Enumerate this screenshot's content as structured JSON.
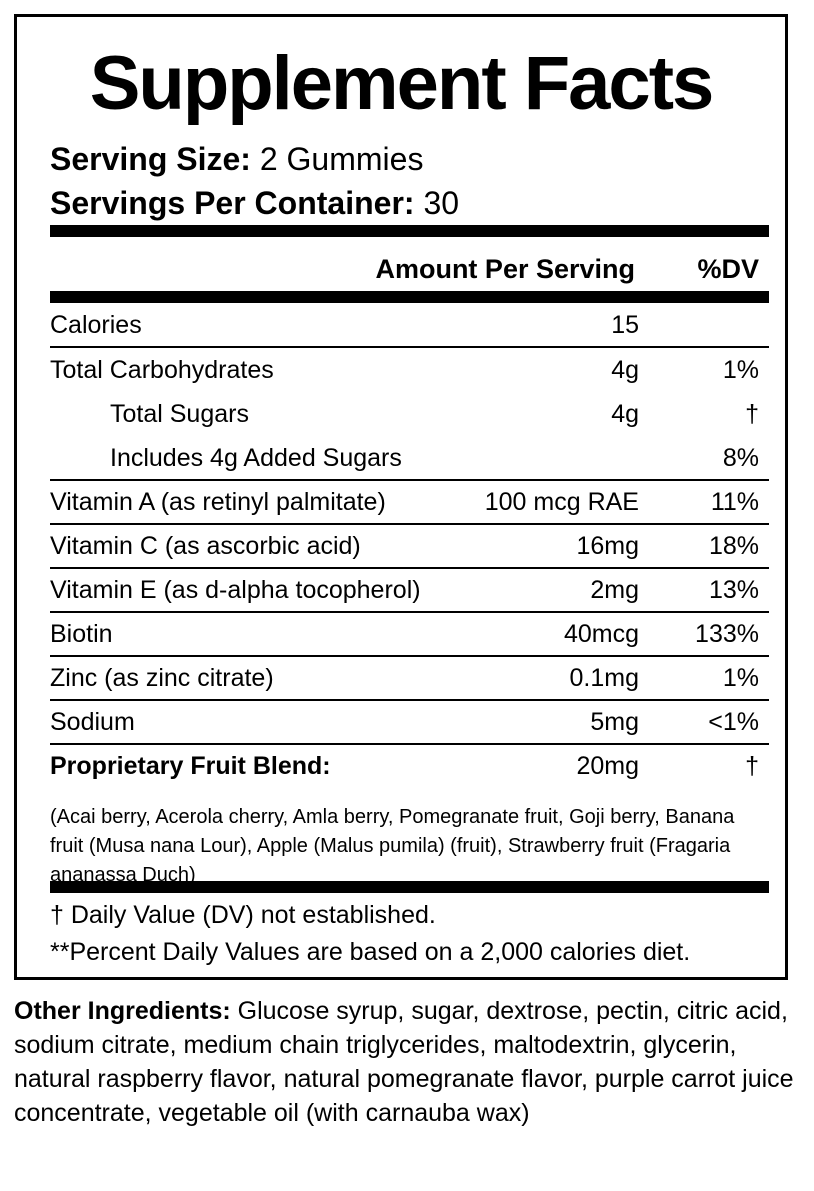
{
  "title": "Supplement Facts",
  "serving_size": {
    "label": "Serving Size:",
    "value": "2 Gummies"
  },
  "servings_per_container": {
    "label": "Servings Per Container:",
    "value": "30"
  },
  "header": {
    "amount": "Amount Per Serving",
    "dv": "%DV"
  },
  "rows": [
    {
      "name": "Calories",
      "amount": "15",
      "dv": ""
    },
    {
      "name": "Total Carbohydrates",
      "amount": "4g",
      "dv": "1%"
    },
    {
      "name": "Total Sugars",
      "amount": "4g",
      "dv": "†"
    },
    {
      "name": "Includes 4g Added Sugars",
      "amount": "",
      "dv": "8%"
    },
    {
      "name": "Vitamin A (as retinyl palmitate)",
      "amount": "100 mcg RAE",
      "dv": "11%"
    },
    {
      "name": "Vitamin C (as ascorbic acid)",
      "amount": "16mg",
      "dv": "18%"
    },
    {
      "name": "Vitamin E (as d-alpha tocopherol)",
      "amount": "2mg",
      "dv": "13%"
    },
    {
      "name": "Biotin",
      "amount": "40mcg",
      "dv": "133%"
    },
    {
      "name": "Zinc (as zinc citrate)",
      "amount": "0.1mg",
      "dv": "1%"
    },
    {
      "name": "Sodium",
      "amount": "5mg",
      "dv": "<1%"
    }
  ],
  "blend": {
    "name": "Proprietary Fruit Blend:",
    "amount": "20mg",
    "dv": "†",
    "description": "(Acai berry, Acerola cherry, Amla berry, Pomegranate fruit, Goji berry, Banana fruit (Musa nana Lour), Apple (Malus pumila) (fruit), Strawberry fruit (Fragaria ananassa Duch)"
  },
  "footnotes": [
    "† Daily Value (DV) not established.",
    "**Percent Daily Values are based on a 2,000 calories diet."
  ],
  "other_ingredients": {
    "label": "Other Ingredients:",
    "text": "Glucose syrup, sugar, dextrose, pectin, citric acid, sodium citrate, medium chain triglycerides, maltodextrin, glycerin, natural raspberry flavor, natural pomegranate flavor, purple carrot juice concentrate, vegetable oil (with carnauba wax)"
  }
}
